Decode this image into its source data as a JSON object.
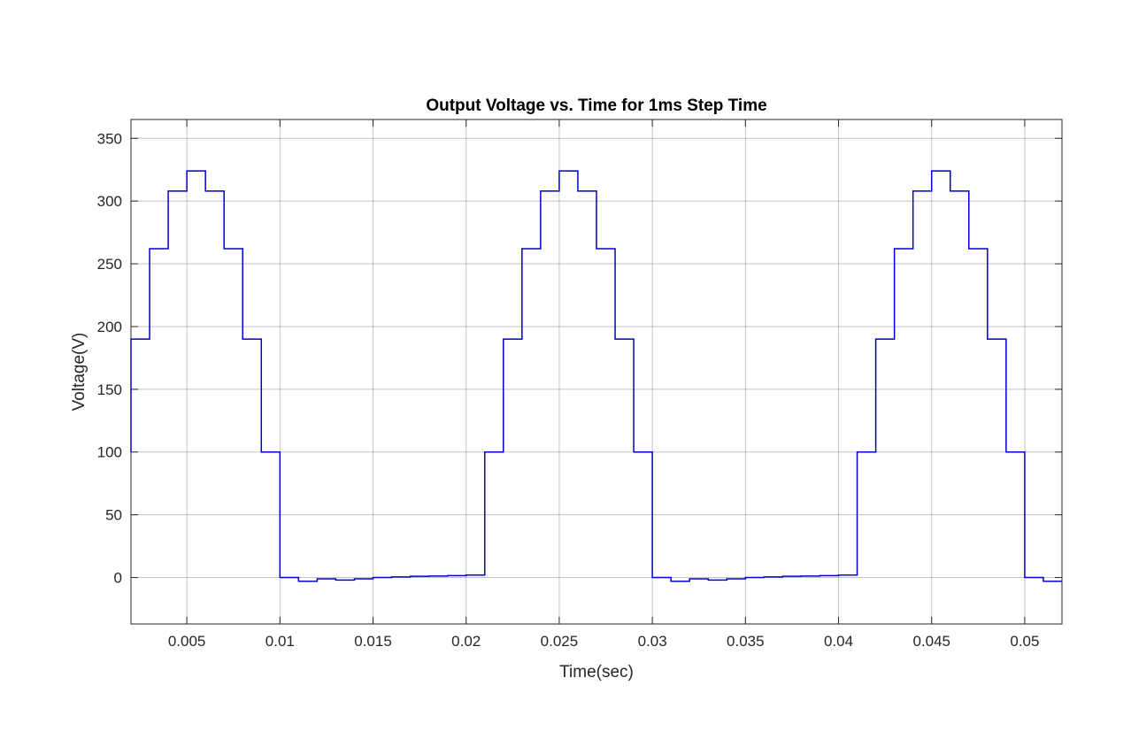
{
  "chart_data": {
    "type": "line",
    "step": true,
    "title": "Output Voltage vs. Time for 1ms Step Time",
    "xlabel": "Time(sec)",
    "ylabel": "Voltage(V)",
    "xlim": [
      0.002,
      0.052
    ],
    "ylim": [
      -37,
      365
    ],
    "grid": true,
    "xticks": [
      0.005,
      0.01,
      0.015,
      0.02,
      0.025,
      0.03,
      0.035,
      0.04,
      0.045,
      0.05
    ],
    "xtick_labels": [
      "0.005",
      "0.01",
      "0.015",
      "0.02",
      "0.025",
      "0.03",
      "0.035",
      "0.04",
      "0.045",
      "0.05"
    ],
    "yticks": [
      0,
      50,
      100,
      150,
      200,
      250,
      300,
      350
    ],
    "ytick_labels": [
      "0",
      "50",
      "100",
      "150",
      "200",
      "250",
      "300",
      "350"
    ],
    "series": [
      {
        "color": "#0000cc",
        "x": [
          0.002,
          0.003,
          0.004,
          0.005,
          0.006,
          0.007,
          0.008,
          0.009,
          0.01,
          0.011,
          0.012,
          0.013,
          0.014,
          0.015,
          0.016,
          0.017,
          0.018,
          0.019,
          0.02,
          0.021,
          0.022,
          0.023,
          0.024,
          0.025,
          0.026,
          0.027,
          0.028,
          0.029,
          0.03,
          0.031,
          0.032,
          0.033,
          0.034,
          0.035,
          0.036,
          0.037,
          0.038,
          0.039,
          0.04,
          0.041,
          0.042,
          0.043,
          0.044,
          0.045,
          0.046,
          0.047,
          0.048,
          0.049,
          0.05,
          0.051,
          0.052
        ],
        "y": [
          190,
          262,
          308,
          324,
          308,
          262,
          190,
          100,
          0,
          -3,
          -1,
          -2,
          -1,
          0,
          0.5,
          1,
          1.2,
          1.5,
          2,
          100,
          190,
          262,
          308,
          324,
          308,
          262,
          190,
          100,
          0,
          -3,
          -1,
          -2,
          -1,
          0,
          0.5,
          1,
          1.2,
          1.5,
          2,
          100,
          190,
          262,
          308,
          324,
          308,
          262,
          190,
          100,
          0,
          -3,
          -3
        ]
      }
    ],
    "initial_point": [
      0.002,
      100
    ]
  }
}
